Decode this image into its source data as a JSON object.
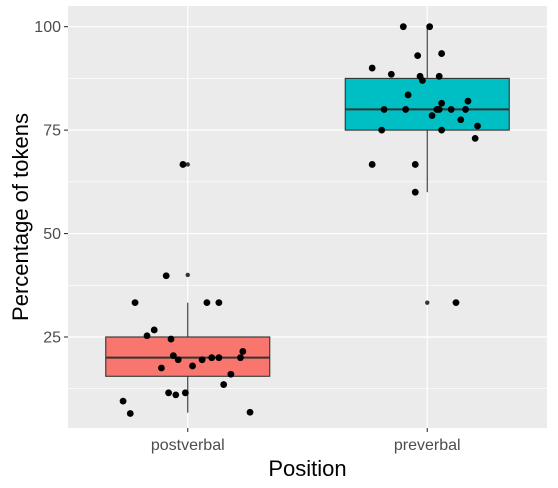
{
  "chart_data": {
    "type": "box",
    "xlabel": "Position",
    "ylabel": "Percentage of tokens",
    "categories": [
      "postverbal",
      "preverbal"
    ],
    "ylim": [
      3,
      105
    ],
    "yticks": [
      25,
      50,
      75,
      100
    ],
    "grid": true,
    "legend": "none",
    "boxes": [
      {
        "category": "postverbal",
        "color": "#F8766D",
        "whisker_low": 6.7,
        "q1": 15.5,
        "median": 20,
        "q3": 25,
        "whisker_high": 33.3,
        "outliers": [
          40,
          66.7
        ]
      },
      {
        "category": "preverbal",
        "color": "#00BFC4",
        "whisker_low": 60,
        "q1": 75,
        "median": 80,
        "q3": 87.5,
        "whisker_high": 100,
        "outliers": [
          33.3
        ]
      }
    ],
    "jitter_points": [
      {
        "category": "postverbal",
        "offset": -0.27,
        "y": 9.5
      },
      {
        "category": "postverbal",
        "offset": -0.24,
        "y": 6.5
      },
      {
        "category": "postverbal",
        "offset": -0.22,
        "y": 33.3
      },
      {
        "category": "postverbal",
        "offset": -0.17,
        "y": 25.3
      },
      {
        "category": "postverbal",
        "offset": -0.14,
        "y": 26.7
      },
      {
        "category": "postverbal",
        "offset": -0.11,
        "y": 17.5
      },
      {
        "category": "postverbal",
        "offset": -0.09,
        "y": 39.8
      },
      {
        "category": "postverbal",
        "offset": -0.08,
        "y": 11.5
      },
      {
        "category": "postverbal",
        "offset": -0.07,
        "y": 24.5
      },
      {
        "category": "postverbal",
        "offset": -0.06,
        "y": 20.5
      },
      {
        "category": "postverbal",
        "offset": -0.05,
        "y": 11.0
      },
      {
        "category": "postverbal",
        "offset": -0.04,
        "y": 19.5
      },
      {
        "category": "postverbal",
        "offset": -0.02,
        "y": 66.7
      },
      {
        "category": "postverbal",
        "offset": -0.01,
        "y": 11.5
      },
      {
        "category": "postverbal",
        "offset": 0.02,
        "y": 18.0
      },
      {
        "category": "postverbal",
        "offset": 0.06,
        "y": 19.5
      },
      {
        "category": "postverbal",
        "offset": 0.08,
        "y": 33.3
      },
      {
        "category": "postverbal",
        "offset": 0.1,
        "y": 20.0
      },
      {
        "category": "postverbal",
        "offset": 0.13,
        "y": 33.3
      },
      {
        "category": "postverbal",
        "offset": 0.13,
        "y": 20.0
      },
      {
        "category": "postverbal",
        "offset": 0.15,
        "y": 13.5
      },
      {
        "category": "postverbal",
        "offset": 0.18,
        "y": 16.0
      },
      {
        "category": "postverbal",
        "offset": 0.22,
        "y": 20.0
      },
      {
        "category": "postverbal",
        "offset": 0.23,
        "y": 21.5
      },
      {
        "category": "postverbal",
        "offset": 0.26,
        "y": 6.8
      },
      {
        "category": "preverbal",
        "offset": -0.23,
        "y": 90.0
      },
      {
        "category": "preverbal",
        "offset": -0.23,
        "y": 66.7
      },
      {
        "category": "preverbal",
        "offset": -0.19,
        "y": 75.0
      },
      {
        "category": "preverbal",
        "offset": -0.18,
        "y": 80.0
      },
      {
        "category": "preverbal",
        "offset": -0.15,
        "y": 88.5
      },
      {
        "category": "preverbal",
        "offset": -0.1,
        "y": 100.0
      },
      {
        "category": "preverbal",
        "offset": -0.09,
        "y": 80.0
      },
      {
        "category": "preverbal",
        "offset": -0.08,
        "y": 83.5
      },
      {
        "category": "preverbal",
        "offset": -0.05,
        "y": 66.7
      },
      {
        "category": "preverbal",
        "offset": -0.05,
        "y": 60.0
      },
      {
        "category": "preverbal",
        "offset": -0.04,
        "y": 93.0
      },
      {
        "category": "preverbal",
        "offset": -0.03,
        "y": 88.0
      },
      {
        "category": "preverbal",
        "offset": -0.02,
        "y": 87.0
      },
      {
        "category": "preverbal",
        "offset": 0.01,
        "y": 100.0
      },
      {
        "category": "preverbal",
        "offset": 0.02,
        "y": 78.5
      },
      {
        "category": "preverbal",
        "offset": 0.04,
        "y": 80.0
      },
      {
        "category": "preverbal",
        "offset": 0.05,
        "y": 80.0
      },
      {
        "category": "preverbal",
        "offset": 0.05,
        "y": 88.0
      },
      {
        "category": "preverbal",
        "offset": 0.06,
        "y": 81.5
      },
      {
        "category": "preverbal",
        "offset": 0.06,
        "y": 75.0
      },
      {
        "category": "preverbal",
        "offset": 0.06,
        "y": 93.5
      },
      {
        "category": "preverbal",
        "offset": 0.1,
        "y": 80.0
      },
      {
        "category": "preverbal",
        "offset": 0.14,
        "y": 77.5
      },
      {
        "category": "preverbal",
        "offset": 0.16,
        "y": 80.0
      },
      {
        "category": "preverbal",
        "offset": 0.17,
        "y": 82.0
      },
      {
        "category": "preverbal",
        "offset": 0.2,
        "y": 73.0
      },
      {
        "category": "preverbal",
        "offset": 0.21,
        "y": 76.0
      },
      {
        "category": "preverbal",
        "offset": 0.12,
        "y": 33.3
      }
    ]
  }
}
